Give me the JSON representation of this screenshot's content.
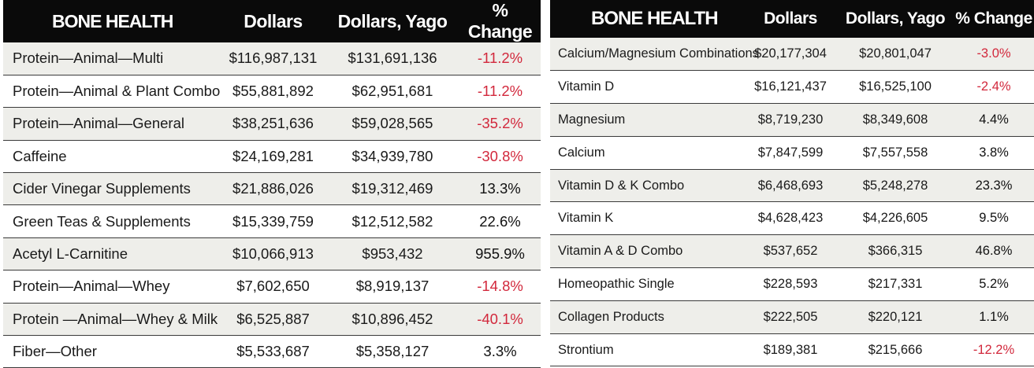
{
  "chart_data": [
    {
      "type": "table",
      "title": "BONE HEALTH",
      "columns": [
        "Dollars",
        "Dollars, Yago",
        "% Change"
      ],
      "rows": [
        {
          "name": "Protein—Animal—Multi",
          "dollars": "$116,987,131",
          "yago": "$131,691,136",
          "change": "-11.2%"
        },
        {
          "name": "Protein—Animal & Plant Combo",
          "dollars": "$55,881,892",
          "yago": "$62,951,681",
          "change": "-11.2%"
        },
        {
          "name": "Protein—Animal—General",
          "dollars": "$38,251,636",
          "yago": "$59,028,565",
          "change": "-35.2%"
        },
        {
          "name": "Caffeine",
          "dollars": "$24,169,281",
          "yago": "$34,939,780",
          "change": "-30.8%"
        },
        {
          "name": "Cider Vinegar Supplements",
          "dollars": "$21,886,026",
          "yago": "$19,312,469",
          "change": "13.3%"
        },
        {
          "name": "Green Teas & Supplements",
          "dollars": "$15,339,759",
          "yago": "$12,512,582",
          "change": "22.6%"
        },
        {
          "name": "Acetyl L-Carnitine",
          "dollars": "$10,066,913",
          "yago": "$953,432",
          "change": "955.9%"
        },
        {
          "name": "Protein—Animal—Whey",
          "dollars": "$7,602,650",
          "yago": "$8,919,137",
          "change": "-14.8%"
        },
        {
          "name": "Protein —Animal—Whey & Milk",
          "dollars": "$6,525,887",
          "yago": "$10,896,452",
          "change": "-40.1%"
        },
        {
          "name": "Fiber—Other",
          "dollars": "$5,533,687",
          "yago": "$5,358,127",
          "change": "3.3%"
        }
      ]
    },
    {
      "type": "table",
      "title": "BONE HEALTH",
      "columns": [
        "Dollars",
        "Dollars, Yago",
        "% Change"
      ],
      "rows": [
        {
          "name": "Calcium/Magnesium Combinations",
          "dollars": "$20,177,304",
          "yago": "$20,801,047",
          "change": "-3.0%"
        },
        {
          "name": "Vitamin D",
          "dollars": "$16,121,437",
          "yago": "$16,525,100",
          "change": "-2.4%"
        },
        {
          "name": "Magnesium",
          "dollars": "$8,719,230",
          "yago": "$8,349,608",
          "change": "4.4%"
        },
        {
          "name": "Calcium",
          "dollars": "$7,847,599",
          "yago": "$7,557,558",
          "change": "3.8%"
        },
        {
          "name": "Vitamin D & K Combo",
          "dollars": "$6,468,693",
          "yago": "$5,248,278",
          "change": "23.3%"
        },
        {
          "name": "Vitamin K",
          "dollars": "$4,628,423",
          "yago": "$4,226,605",
          "change": "9.5%"
        },
        {
          "name": "Vitamin A & D Combo",
          "dollars": "$537,652",
          "yago": "$366,315",
          "change": "46.8%"
        },
        {
          "name": "Homeopathic Single",
          "dollars": "$228,593",
          "yago": "$217,331",
          "change": "5.2%"
        },
        {
          "name": "Collagen Products",
          "dollars": "$222,505",
          "yago": "$220,121",
          "change": "1.1%"
        },
        {
          "name": "Strontium",
          "dollars": "$189,381",
          "yago": "$215,666",
          "change": "-12.2%"
        }
      ]
    }
  ]
}
